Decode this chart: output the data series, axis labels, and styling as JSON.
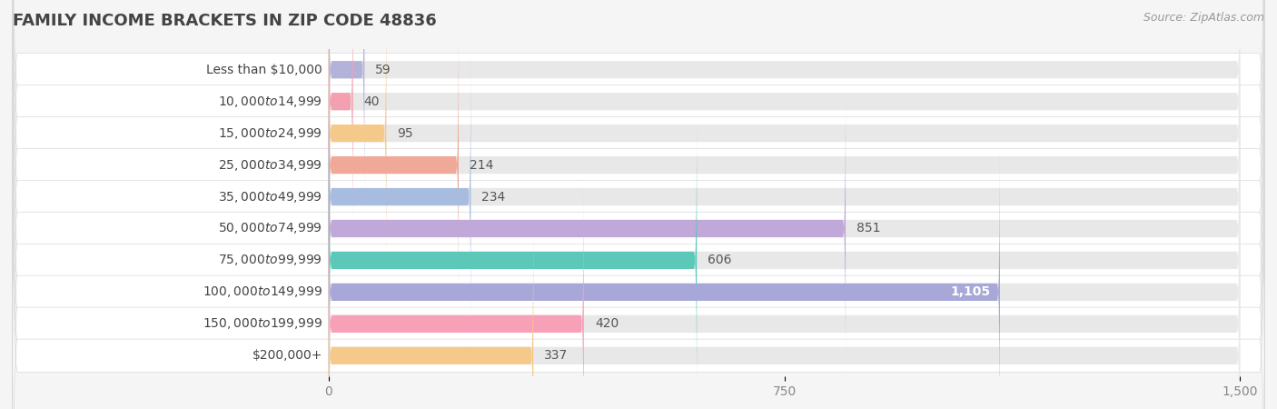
{
  "title": "FAMILY INCOME BRACKETS IN ZIP CODE 48836",
  "source": "Source: ZipAtlas.com",
  "categories": [
    "Less than $10,000",
    "$10,000 to $14,999",
    "$15,000 to $24,999",
    "$25,000 to $34,999",
    "$35,000 to $49,999",
    "$50,000 to $74,999",
    "$75,000 to $99,999",
    "$100,000 to $149,999",
    "$150,000 to $199,999",
    "$200,000+"
  ],
  "values": [
    59,
    40,
    95,
    214,
    234,
    851,
    606,
    1105,
    420,
    337
  ],
  "bar_colors": [
    "#b3b3d9",
    "#f4a0b0",
    "#f5c98a",
    "#f0a898",
    "#a8bce0",
    "#c0a8d8",
    "#5cc8b8",
    "#a8a8d8",
    "#f8a0b8",
    "#f5c98a"
  ],
  "xlim_data": [
    0,
    1500
  ],
  "xticks": [
    0,
    750,
    1500
  ],
  "xtick_labels": [
    "0",
    "750",
    "1,500"
  ],
  "bar_height": 0.55,
  "bg_color": "#f5f5f5",
  "row_bg_color": "#ffffff",
  "bar_bg_color": "#e8e8e8",
  "grid_color": "#cccccc",
  "title_fontsize": 13,
  "label_fontsize": 10,
  "value_fontsize": 10,
  "source_fontsize": 9,
  "value_inside_bar_idx": 7,
  "value_inside_color": "#9090c0"
}
